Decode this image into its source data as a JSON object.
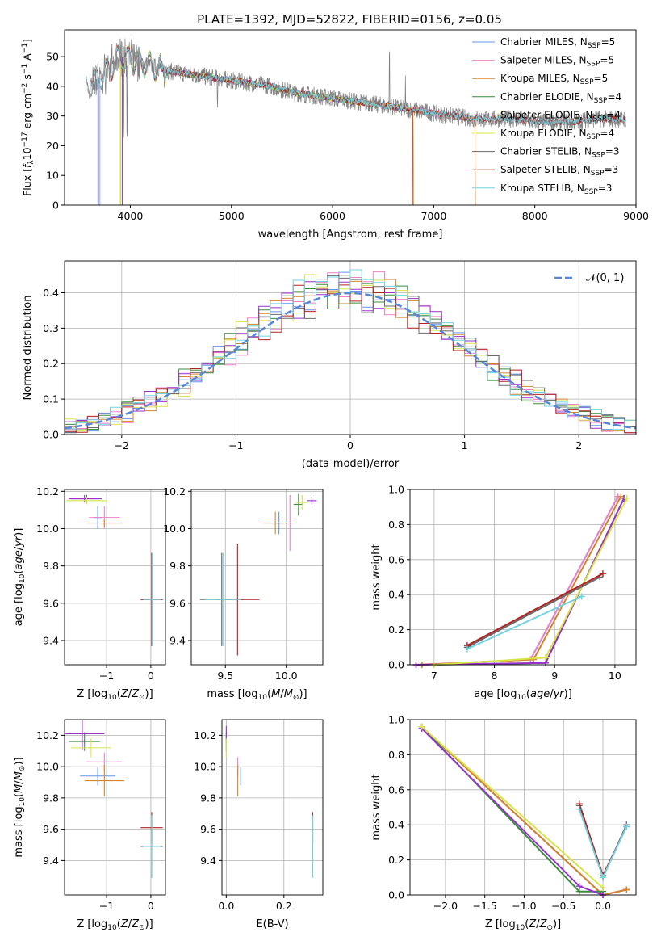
{
  "title": "PLATE=1392, MJD=52822, FIBERID=0156, z=0.05",
  "colors": {
    "chabrier_miles": "#6495ed",
    "salpeter_miles": "#ee82c8",
    "kroupa_miles": "#d2862a",
    "chabrier_elodie": "#3c8c3c",
    "salpeter_elodie": "#9932cc",
    "kroupa_elodie": "#d8e44a",
    "chabrier_stelib": "#6a6a6a",
    "salpeter_stelib": "#b22222",
    "kroupa_stelib": "#72d2e0",
    "normal": "#5b86d6",
    "grid": "#b0b0b0"
  },
  "chart_data": [
    {
      "id": "spectrum",
      "type": "line",
      "xlabel": "wavelength [Angstrom, rest frame]",
      "ylabel": "Flux [f_λ10^-17 erg cm^-2 s^-1 A^-1]",
      "xlim": [
        3350,
        9000
      ],
      "ylim": [
        0,
        59
      ],
      "xticks": [
        "4000",
        "5000",
        "6000",
        "7000",
        "8000",
        "9000"
      ],
      "yticks": [
        "0",
        "10",
        "20",
        "30",
        "40",
        "50"
      ],
      "grid": false,
      "legend_position": "top-right",
      "legend": [
        {
          "label": "Chabrier MILES, N",
          "sub": "SSP",
          "tail": "=5",
          "color_key": "chabrier_miles"
        },
        {
          "label": "Salpeter MILES, N",
          "sub": "SSP",
          "tail": "=5",
          "color_key": "salpeter_miles"
        },
        {
          "label": "Kroupa MILES, N",
          "sub": "SSP",
          "tail": "=5",
          "color_key": "kroupa_miles"
        },
        {
          "label": "Chabrier ELODIE, N",
          "sub": "SSP",
          "tail": "=4",
          "color_key": "chabrier_elodie"
        },
        {
          "label": "Salpeter ELODIE, N",
          "sub": "SSP",
          "tail": "=4",
          "color_key": "salpeter_elodie"
        },
        {
          "label": "Kroupa ELODIE, N",
          "sub": "SSP",
          "tail": "=4",
          "color_key": "kroupa_elodie"
        },
        {
          "label": "Chabrier STELIB, N",
          "sub": "SSP",
          "tail": "=3",
          "color_key": "chabrier_stelib"
        },
        {
          "label": "Salpeter STELIB, N",
          "sub": "SSP",
          "tail": "=3",
          "color_key": "salpeter_stelib"
        },
        {
          "label": "Kroupa STELIB, N",
          "sub": "SSP",
          "tail": "=3",
          "color_key": "kroupa_stelib"
        }
      ],
      "continuum": [
        [
          3600,
          40
        ],
        [
          3700,
          43
        ],
        [
          3800,
          46
        ],
        [
          3900,
          50
        ],
        [
          4000,
          49
        ],
        [
          4200,
          47
        ],
        [
          4400,
          45
        ],
        [
          4600,
          44
        ],
        [
          4800,
          43
        ],
        [
          5000,
          42
        ],
        [
          5200,
          41
        ],
        [
          5400,
          40
        ],
        [
          5600,
          38
        ],
        [
          5800,
          37
        ],
        [
          6000,
          36
        ],
        [
          6200,
          35
        ],
        [
          6400,
          34
        ],
        [
          6600,
          33
        ],
        [
          6800,
          32
        ],
        [
          7000,
          31
        ],
        [
          7200,
          30
        ],
        [
          7400,
          29
        ],
        [
          7600,
          29
        ],
        [
          7800,
          29
        ],
        [
          8000,
          28
        ],
        [
          8200,
          28
        ],
        [
          8400,
          28
        ],
        [
          8600,
          29
        ],
        [
          8800,
          29
        ]
      ],
      "model_ranges": {
        "chabrier_miles": [
          3540,
          7410
        ],
        "salpeter_miles": [
          3540,
          7410
        ],
        "kroupa_miles": [
          3540,
          7410
        ],
        "chabrier_elodie": [
          3900,
          6800
        ],
        "salpeter_elodie": [
          3900,
          6800
        ],
        "kroupa_elodie": [
          3900,
          6800
        ],
        "chabrier_stelib": [
          3200,
          9300
        ],
        "salpeter_stelib": [
          3200,
          9300
        ],
        "kroupa_stelib": [
          3200,
          9300
        ]
      }
    },
    {
      "id": "residual_hist",
      "type": "histogram",
      "xlabel": "(data-model)/error",
      "ylabel": "Normed distribution",
      "xlim": [
        -2.5,
        2.5
      ],
      "ylim": [
        0,
        0.49
      ],
      "xticks": [
        "−2",
        "−1",
        "0",
        "1",
        "2"
      ],
      "yticks": [
        "0.0",
        "0.1",
        "0.2",
        "0.3",
        "0.4"
      ],
      "grid": true,
      "legend_position": "top-right",
      "legend": [
        {
          "label": "𝒩(0, 1)",
          "color_key": "normal",
          "style": "dashed"
        }
      ],
      "bin_width": 0.1,
      "series_colors": [
        "chabrier_miles",
        "salpeter_miles",
        "kroupa_miles",
        "chabrier_elodie",
        "salpeter_elodie",
        "kroupa_elodie",
        "chabrier_stelib",
        "salpeter_stelib",
        "kroupa_stelib"
      ]
    },
    {
      "id": "age_vs_Z",
      "type": "errorbar",
      "xlabel": "Z [log10(Z/Z⊙)]",
      "ylabel": "age  [log10(age/yr)]",
      "xlim": [
        -1.95,
        0.33
      ],
      "ylim": [
        9.27,
        10.21
      ],
      "xticks": [
        {
          "v": -1,
          "t": "−1"
        },
        {
          "v": 0,
          "t": "0"
        }
      ],
      "yticks": [
        {
          "v": 9.4,
          "t": "9.4"
        },
        {
          "v": 9.6,
          "t": "9.6"
        },
        {
          "v": 9.8,
          "t": "9.8"
        },
        {
          "v": 10.0,
          "t": "10.0"
        },
        {
          "v": 10.2,
          "t": "10.2"
        }
      ],
      "points": [
        {
          "c": "chabrier_miles",
          "x": -1.2,
          "xe": 0.1,
          "y": 10.06,
          "ye": 0.06
        },
        {
          "c": "salpeter_miles",
          "x": -1.05,
          "xe": 0.35,
          "y": 10.06,
          "ye": 0.06
        },
        {
          "c": "kroupa_miles",
          "x": -1.05,
          "xe": 0.4,
          "y": 10.03,
          "ye": 0.02
        },
        {
          "c": "chabrier_elodie",
          "x": -1.45,
          "xe": 0.35,
          "y": 10.16,
          "ye": 0.02
        },
        {
          "c": "salpeter_elodie",
          "x": -1.5,
          "xe": 0.35,
          "y": 10.16,
          "ye": 0.02
        },
        {
          "c": "kroupa_elodie",
          "x": -1.45,
          "xe": 0.45,
          "y": 10.15,
          "ye": 0.02
        },
        {
          "c": "chabrier_stelib",
          "x": 0.02,
          "xe": 0.25,
          "y": 9.62,
          "ye": 0.25
        },
        {
          "c": "salpeter_stelib",
          "x": 0.02,
          "xe": 0.25,
          "y": 9.62,
          "ye": 0.25
        },
        {
          "c": "kroupa_stelib",
          "x": 0.03,
          "xe": 0.2,
          "y": 9.62,
          "ye": 0.25
        }
      ]
    },
    {
      "id": "age_vs_mass",
      "type": "errorbar",
      "xlabel": "mass [log10(M/M⊙)]",
      "ylabel": "",
      "xlim": [
        9.22,
        10.3
      ],
      "ylim": [
        9.27,
        10.21
      ],
      "xticks": [
        {
          "v": 9.5,
          "t": "9.5"
        },
        {
          "v": 10.0,
          "t": "10.0"
        }
      ],
      "yticks": [
        {
          "v": 9.4,
          "t": "9.4"
        },
        {
          "v": 9.6,
          "t": "9.6"
        },
        {
          "v": 9.8,
          "t": "9.8"
        },
        {
          "v": 10.0,
          "t": "10.0"
        },
        {
          "v": 10.2,
          "t": "10.2"
        }
      ],
      "points": [
        {
          "c": "chabrier_miles",
          "x": 9.94,
          "xe": 0.04,
          "y": 10.03,
          "ye": 0.06
        },
        {
          "c": "salpeter_miles",
          "x": 10.03,
          "xe": 0.04,
          "y": 10.03,
          "ye": 0.15
        },
        {
          "c": "kroupa_miles",
          "x": 9.91,
          "xe": 0.1,
          "y": 10.03,
          "ye": 0.06
        },
        {
          "c": "chabrier_elodie",
          "x": 10.1,
          "xe": 0.04,
          "y": 10.13,
          "ye": 0.06
        },
        {
          "c": "salpeter_elodie",
          "x": 10.21,
          "xe": 0.04,
          "y": 10.15,
          "ye": 0.02
        },
        {
          "c": "kroupa_elodie",
          "x": 10.13,
          "xe": 0.05,
          "y": 10.14,
          "ye": 0.04
        },
        {
          "c": "chabrier_stelib",
          "x": 9.47,
          "xe": 0.18,
          "y": 9.62,
          "ye": 0.25
        },
        {
          "c": "salpeter_stelib",
          "x": 9.6,
          "xe": 0.18,
          "y": 9.62,
          "ye": 0.3
        },
        {
          "c": "kroupa_stelib",
          "x": 9.48,
          "xe": 0.15,
          "y": 9.62,
          "ye": 0.25
        }
      ]
    },
    {
      "id": "mass_weight_vs_age",
      "type": "line",
      "xlabel": "age  [log10(age/yr)]",
      "ylabel": "mass weight",
      "xlim": [
        6.6,
        10.35
      ],
      "ylim": [
        0,
        1
      ],
      "xticks": [
        {
          "v": 7,
          "t": "7"
        },
        {
          "v": 8,
          "t": "8"
        },
        {
          "v": 9,
          "t": "9"
        },
        {
          "v": 10,
          "t": "10"
        }
      ],
      "yticks": [
        {
          "v": 0,
          "t": "0.0"
        },
        {
          "v": 0.2,
          "t": "0.2"
        },
        {
          "v": 0.4,
          "t": "0.4"
        },
        {
          "v": 0.6,
          "t": "0.6"
        },
        {
          "v": 0.8,
          "t": "0.8"
        },
        {
          "v": 1.0,
          "t": "1.0"
        }
      ],
      "grid": true,
      "series": [
        {
          "c": "chabrier_miles",
          "x": [
            6.8,
            8.6,
            10.05
          ],
          "y": [
            0.0,
            0.03,
            0.96
          ]
        },
        {
          "c": "salpeter_miles",
          "x": [
            6.7,
            8.6,
            10.05
          ],
          "y": [
            0.0,
            0.03,
            0.96
          ]
        },
        {
          "c": "kroupa_miles",
          "x": [
            6.8,
            8.65,
            10.1
          ],
          "y": [
            0.0,
            0.03,
            0.96
          ]
        },
        {
          "c": "chabrier_elodie",
          "x": [
            7.0,
            8.85,
            10.15
          ],
          "y": [
            0.0,
            0.01,
            0.95
          ]
        },
        {
          "c": "salpeter_elodie",
          "x": [
            6.7,
            8.85,
            10.15
          ],
          "y": [
            0.0,
            0.01,
            0.95
          ]
        },
        {
          "c": "kroupa_elodie",
          "x": [
            7.0,
            8.85,
            10.2
          ],
          "y": [
            0.0,
            0.04,
            0.95
          ]
        },
        {
          "c": "chabrier_stelib",
          "x": [
            7.55,
            9.75
          ],
          "y": [
            0.1,
            0.5
          ]
        },
        {
          "c": "salpeter_stelib",
          "x": [
            7.55,
            9.8
          ],
          "y": [
            0.11,
            0.52
          ]
        },
        {
          "c": "kroupa_stelib",
          "x": [
            7.55,
            9.45
          ],
          "y": [
            0.09,
            0.39
          ]
        }
      ]
    },
    {
      "id": "mass_vs_Z",
      "type": "errorbar",
      "xlabel": "Z [log10(Z/Z⊙)]",
      "ylabel": "mass [log10(M/M⊙)]",
      "xlim": [
        -1.95,
        0.33
      ],
      "ylim": [
        9.18,
        10.3
      ],
      "xticks": [
        {
          "v": -1,
          "t": "−1"
        },
        {
          "v": 0,
          "t": "0"
        }
      ],
      "yticks": [
        {
          "v": 9.4,
          "t": "9.4"
        },
        {
          "v": 9.6,
          "t": "9.6"
        },
        {
          "v": 9.8,
          "t": "9.8"
        },
        {
          "v": 10.0,
          "t": "10.0"
        },
        {
          "v": 10.2,
          "t": "10.2"
        }
      ],
      "points": [
        {
          "c": "chabrier_miles",
          "x": -1.2,
          "xe": 0.4,
          "y": 9.94,
          "ye": 0.06
        },
        {
          "c": "salpeter_miles",
          "x": -1.05,
          "xe": 0.4,
          "y": 10.03,
          "ye": 0.06
        },
        {
          "c": "kroupa_miles",
          "x": -1.05,
          "xe": 0.45,
          "y": 9.91,
          "ye": 0.1
        },
        {
          "c": "chabrier_elodie",
          "x": -1.5,
          "xe": 0.35,
          "y": 10.16,
          "ye": 0.06
        },
        {
          "c": "salpeter_elodie",
          "x": -1.55,
          "xe": 0.5,
          "y": 10.21,
          "ye": 0.1
        },
        {
          "c": "kroupa_elodie",
          "x": -1.35,
          "xe": 0.45,
          "y": 10.12,
          "ye": 0.06
        },
        {
          "c": "chabrier_stelib",
          "x": 0.02,
          "xe": 0.25,
          "y": 9.49,
          "ye": 0.2
        },
        {
          "c": "salpeter_stelib",
          "x": 0.02,
          "xe": 0.25,
          "y": 9.61,
          "ye": 0.1
        },
        {
          "c": "kroupa_stelib",
          "x": 0.02,
          "xe": 0.2,
          "y": 9.49,
          "ye": 0.2
        }
      ]
    },
    {
      "id": "mass_vs_ebv",
      "type": "errorbar",
      "xlabel": "E(B-V)",
      "ylabel": "",
      "xlim": [
        -0.015,
        0.335
      ],
      "ylim": [
        9.18,
        10.3
      ],
      "xticks": [
        {
          "v": 0,
          "t": "0.0"
        },
        {
          "v": 0.2,
          "t": "0.2"
        }
      ],
      "yticks": [
        {
          "v": 9.4,
          "t": "9.4"
        },
        {
          "v": 9.6,
          "t": "9.6"
        },
        {
          "v": 9.8,
          "t": "9.8"
        },
        {
          "v": 10.0,
          "t": "10.0"
        },
        {
          "v": 10.2,
          "t": "10.2"
        }
      ],
      "points": [
        {
          "c": "chabrier_miles",
          "x": 0.05,
          "xe": 0.0,
          "y": 9.94,
          "ye": 0.06
        },
        {
          "c": "salpeter_miles",
          "x": 0.04,
          "xe": 0.0,
          "y": 10.0,
          "ye": 0.06
        },
        {
          "c": "kroupa_miles",
          "x": 0.04,
          "xe": 0.0,
          "y": 9.91,
          "ye": 0.1
        },
        {
          "c": "chabrier_elodie",
          "x": 0.0,
          "xe": 0.0,
          "y": 10.16,
          "ye": 0.06
        },
        {
          "c": "salpeter_elodie",
          "x": 0.0,
          "xe": 0.0,
          "y": 10.21,
          "ye": 0.05
        },
        {
          "c": "kroupa_elodie",
          "x": 0.0,
          "xe": 0.0,
          "y": 10.12,
          "ye": 0.06
        },
        {
          "c": "chabrier_stelib",
          "x": 0.3,
          "xe": 0.0,
          "y": 9.49,
          "ye": 0.2
        },
        {
          "c": "salpeter_stelib",
          "x": 0.3,
          "xe": 0.0,
          "y": 9.61,
          "ye": 0.1
        },
        {
          "c": "kroupa_stelib",
          "x": 0.3,
          "xe": 0.0,
          "y": 9.49,
          "ye": 0.2
        }
      ]
    },
    {
      "id": "mass_weight_vs_Z",
      "type": "line",
      "xlabel": "Z [log10(Z/Z⊙)]",
      "ylabel": "mass weight",
      "xlim": [
        -2.45,
        0.42
      ],
      "ylim": [
        0,
        1
      ],
      "xticks": [
        {
          "v": -2.0,
          "t": "−2.0"
        },
        {
          "v": -1.5,
          "t": "−1.5"
        },
        {
          "v": -1.0,
          "t": "−1.0"
        },
        {
          "v": -0.5,
          "t": "−0.5"
        },
        {
          "v": 0.0,
          "t": "0.0"
        }
      ],
      "yticks": [
        {
          "v": 0,
          "t": "0.0"
        },
        {
          "v": 0.2,
          "t": "0.2"
        },
        {
          "v": 0.4,
          "t": "0.4"
        },
        {
          "v": 0.6,
          "t": "0.6"
        },
        {
          "v": 0.8,
          "t": "0.8"
        },
        {
          "v": 1.0,
          "t": "1.0"
        }
      ],
      "grid": true,
      "series": [
        {
          "c": "chabrier_miles",
          "x": [
            -2.3,
            0.0,
            0.3
          ],
          "y": [
            0.96,
            0.0,
            0.03
          ]
        },
        {
          "c": "salpeter_miles",
          "x": [
            -2.3,
            0.0,
            0.3
          ],
          "y": [
            0.96,
            0.0,
            0.03
          ]
        },
        {
          "c": "kroupa_miles",
          "x": [
            -2.3,
            0.0,
            0.3
          ],
          "y": [
            0.96,
            0.0,
            0.03
          ]
        },
        {
          "c": "chabrier_elodie",
          "x": [
            -2.3,
            -0.3,
            0.0
          ],
          "y": [
            0.96,
            0.02,
            0.02
          ]
        },
        {
          "c": "salpeter_elodie",
          "x": [
            -2.3,
            -0.3,
            0.0
          ],
          "y": [
            0.95,
            0.05,
            0.0
          ]
        },
        {
          "c": "kroupa_elodie",
          "x": [
            -2.3,
            0.0
          ],
          "y": [
            0.96,
            0.04
          ]
        },
        {
          "c": "chabrier_stelib",
          "x": [
            -0.3,
            0.0,
            0.3
          ],
          "y": [
            0.51,
            0.1,
            0.4
          ]
        },
        {
          "c": "salpeter_stelib",
          "x": [
            -0.3,
            0.0,
            0.3
          ],
          "y": [
            0.52,
            0.11,
            0.39
          ]
        },
        {
          "c": "kroupa_stelib",
          "x": [
            -0.3,
            0.0,
            0.3
          ],
          "y": [
            0.49,
            0.1,
            0.39
          ]
        }
      ]
    }
  ]
}
